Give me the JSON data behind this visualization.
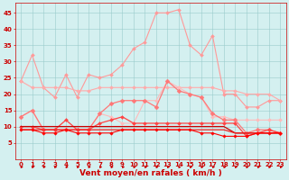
{
  "x": [
    0,
    1,
    2,
    3,
    4,
    5,
    6,
    7,
    8,
    9,
    10,
    11,
    12,
    13,
    14,
    15,
    16,
    17,
    18,
    19,
    20,
    21,
    22,
    23
  ],
  "series": [
    {
      "name": "rafales_max",
      "color": "#ff9999",
      "lw": 0.8,
      "marker": "D",
      "markersize": 2.0,
      "y": [
        24,
        32,
        22,
        19,
        26,
        19,
        26,
        25,
        26,
        29,
        34,
        36,
        45,
        45,
        46,
        35,
        32,
        38,
        20,
        20,
        16,
        16,
        18,
        18
      ]
    },
    {
      "name": "vent_moyen_max",
      "color": "#ffaaaa",
      "lw": 0.8,
      "marker": "D",
      "markersize": 2.0,
      "y": [
        24,
        22,
        22,
        22,
        22,
        21,
        21,
        22,
        22,
        22,
        22,
        22,
        22,
        22,
        22,
        22,
        22,
        22,
        21,
        21,
        20,
        20,
        20,
        18
      ]
    },
    {
      "name": "vent_moy_upper",
      "color": "#ffbbbb",
      "lw": 0.8,
      "marker": "D",
      "markersize": 2.0,
      "y": [
        13,
        15,
        9,
        9,
        9,
        9,
        9,
        14,
        13,
        11,
        11,
        18,
        18,
        24,
        22,
        20,
        19,
        13,
        13,
        12,
        12,
        12,
        12,
        12
      ]
    },
    {
      "name": "rafales_moy",
      "color": "#ff7777",
      "lw": 0.9,
      "marker": "D",
      "markersize": 2.5,
      "y": [
        13,
        15,
        9,
        9,
        9,
        9,
        9,
        14,
        17,
        18,
        18,
        18,
        16,
        24,
        21,
        20,
        19,
        14,
        12,
        12,
        8,
        9,
        9,
        8
      ]
    },
    {
      "name": "vent_med",
      "color": "#ff4444",
      "lw": 0.9,
      "marker": "D",
      "markersize": 2.0,
      "y": [
        10,
        10,
        9,
        9,
        12,
        9,
        9,
        11,
        12,
        13,
        11,
        11,
        11,
        11,
        11,
        11,
        11,
        11,
        11,
        11,
        7,
        8,
        9,
        8
      ]
    },
    {
      "name": "vent_flat1",
      "color": "#cc0000",
      "lw": 0.9,
      "marker": null,
      "markersize": 0,
      "y": [
        10,
        10,
        10,
        10,
        10,
        10,
        10,
        10,
        10,
        10,
        10,
        10,
        10,
        10,
        10,
        10,
        10,
        10,
        10,
        8,
        8,
        8,
        8,
        8
      ]
    },
    {
      "name": "vent_flat2",
      "color": "#ee2222",
      "lw": 0.9,
      "marker": null,
      "markersize": 0,
      "y": [
        9,
        9,
        9,
        9,
        9,
        9,
        9,
        9,
        9,
        9,
        9,
        9,
        9,
        9,
        9,
        9,
        9,
        9,
        9,
        8,
        8,
        8,
        8,
        8
      ]
    },
    {
      "name": "vent_min",
      "color": "#ff0000",
      "lw": 0.8,
      "marker": "D",
      "markersize": 1.8,
      "y": [
        9,
        9,
        8,
        8,
        9,
        8,
        8,
        8,
        8,
        9,
        9,
        9,
        9,
        9,
        9,
        9,
        8,
        8,
        7,
        7,
        7,
        8,
        8,
        8
      ]
    }
  ],
  "xlabel": "Vent moyen/en rafales ( km/h )",
  "xlabel_color": "#cc0000",
  "xlabel_fontsize": 6.5,
  "xlim": [
    -0.5,
    23.5
  ],
  "ylim": [
    0,
    48
  ],
  "yticks": [
    5,
    10,
    15,
    20,
    25,
    30,
    35,
    40,
    45
  ],
  "xticks": [
    0,
    1,
    2,
    3,
    4,
    5,
    6,
    7,
    8,
    9,
    10,
    11,
    12,
    13,
    14,
    15,
    16,
    17,
    18,
    19,
    20,
    21,
    22,
    23
  ],
  "grid_color": "#99cccc",
  "bg_color": "#d4f0f0",
  "tick_color": "#cc0000",
  "tick_fontsize": 5.0,
  "arrow_color": "#cc0000"
}
